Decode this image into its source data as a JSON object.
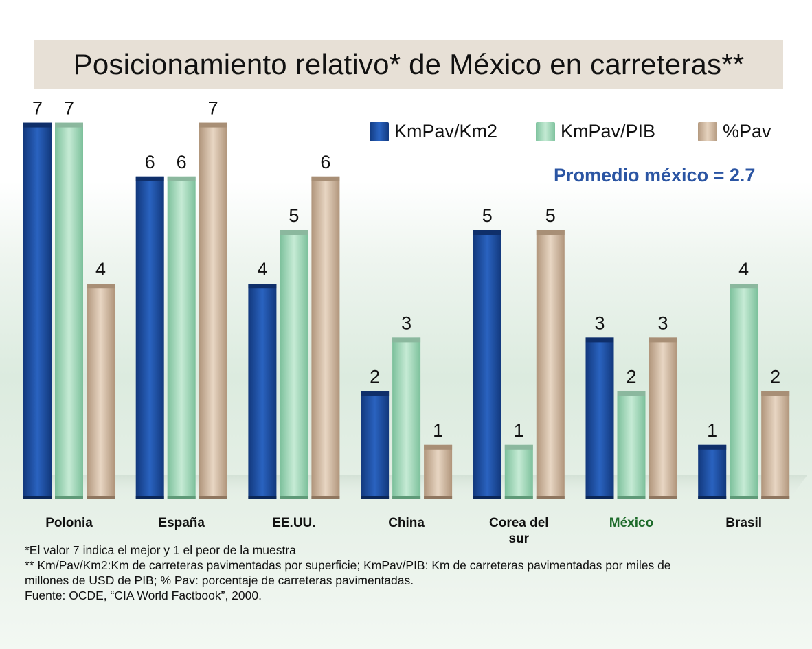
{
  "title": "Posicionamiento relativo* de México en carreteras**",
  "subtitle": "Promedio méxico = 2.7",
  "notes": [
    "*El valor 7 indica el mejor y 1 el peor de la muestra",
    "** Km/Pav/Km2:Km de carreteras pavimentadas por superficie; KmPav/PIB: Km de carreteras pavimentadas por miles de",
    "millones de USD de PIB; % Pav: porcentaje de carreteras pavimentadas.",
    "Fuente: OCDE, “CIA World Factbook”, 2000."
  ],
  "colors": {
    "KmPav/Km2": "#1f4fa3",
    "KmPav/PIB": "#a9dcc0",
    "%Pav": "#d5bca3",
    "highlight_category": "#1e6b2b"
  },
  "chart_data": {
    "type": "bar",
    "title": "Posicionamiento relativo* de México en carreteras**",
    "categories": [
      "Polonia",
      "España",
      "EE.UU.",
      "China",
      "Corea del sur",
      "México",
      "Brasil"
    ],
    "highlight": "México",
    "series": [
      {
        "name": "KmPav/Km2",
        "values": [
          7,
          6,
          4,
          2,
          5,
          3,
          1
        ]
      },
      {
        "name": "KmPav/PIB",
        "values": [
          7,
          6,
          5,
          3,
          1,
          2,
          4
        ]
      },
      {
        "name": "%Pav",
        "values": [
          4,
          7,
          6,
          1,
          5,
          3,
          2
        ]
      }
    ],
    "ylim": [
      0,
      7
    ],
    "grid": false,
    "legend": "top-right",
    "data_labels": true
  }
}
